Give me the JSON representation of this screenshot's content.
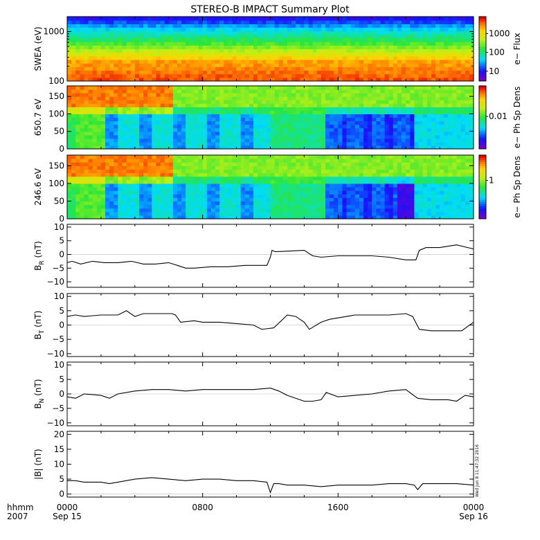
{
  "title": "STEREO-B IMPACT Summary Plot",
  "stamp": "Wed Jun  8 11:47:32 2016",
  "time_axis": {
    "corner_top": "hhmm",
    "corner_bottom": "2007",
    "ticks": [
      {
        "hour": 0,
        "label": "0000",
        "sub": "Sep 15"
      },
      {
        "hour": 8,
        "label": "0800",
        "sub": ""
      },
      {
        "hour": 16,
        "label": "1600",
        "sub": ""
      },
      {
        "hour": 24,
        "label": "0000",
        "sub": "Sep 16"
      }
    ],
    "range_hours": [
      0,
      24
    ]
  },
  "colors": {
    "line": "#000000",
    "axis": "#000000"
  },
  "chart_data": [
    {
      "type": "heatmap",
      "id": "swea",
      "ylabel": "SWEA (eV)",
      "yscale": "log",
      "ylim": [
        100,
        2000
      ],
      "yticks": [
        {
          "v": 100,
          "label": "100"
        },
        {
          "v": 1000,
          "label": "1000"
        }
      ],
      "colorbar": {
        "label": "e− Flux",
        "scale": "log",
        "range": [
          3,
          8000
        ],
        "ticks": [
          {
            "v": 10,
            "label": "10"
          },
          {
            "v": 100,
            "label": "100"
          },
          {
            "v": 1000,
            "label": "1000"
          }
        ]
      }
    },
    {
      "type": "heatmap",
      "id": "pad650",
      "ylabel": "650.7 eV",
      "ylim": [
        0,
        180
      ],
      "yticks": [
        {
          "v": 0,
          "label": "0"
        },
        {
          "v": 50,
          "label": "50"
        },
        {
          "v": 100,
          "label": "100"
        },
        {
          "v": 150,
          "label": "150"
        }
      ],
      "colorbar": {
        "label": "e− Ph Sp Dens",
        "scale": "log",
        "range": [
          0.0015,
          0.06
        ],
        "ticks": [
          {
            "v": 0.01,
            "label": "0.01"
          }
        ]
      }
    },
    {
      "type": "heatmap",
      "id": "pad246",
      "ylabel": "246.6 eV",
      "ylim": [
        0,
        180
      ],
      "yticks": [
        {
          "v": 0,
          "label": "0"
        },
        {
          "v": 50,
          "label": "50"
        },
        {
          "v": 100,
          "label": "100"
        },
        {
          "v": 150,
          "label": "150"
        }
      ],
      "colorbar": {
        "label": "e− Ph Sp Dens",
        "scale": "log",
        "range": [
          0.15,
          3.5
        ],
        "ticks": [
          {
            "v": 1,
            "label": "1"
          }
        ]
      }
    },
    {
      "type": "line",
      "id": "br",
      "ylabel": "B",
      "ylabel_sub": "R",
      "ylabel_unit": " (nT)",
      "ylim": [
        -12,
        11
      ],
      "yticks": [
        {
          "v": -10,
          "label": "−10"
        },
        {
          "v": -5,
          "label": "−5"
        },
        {
          "v": 0,
          "label": "0"
        },
        {
          "v": 5,
          "label": "5"
        },
        {
          "v": 10,
          "label": "10"
        }
      ],
      "x": [
        0,
        0.3,
        0.8,
        1.5,
        2.2,
        3.0,
        3.8,
        4.5,
        5.2,
        6.0,
        6.5,
        7.0,
        7.5,
        8.5,
        9.5,
        10.5,
        11.2,
        11.8,
        12.0,
        12.1,
        12.3,
        13.0,
        14.0,
        14.5,
        15.0,
        16.0,
        17.0,
        18.0,
        19.0,
        20.0,
        20.6,
        20.8,
        21.2,
        22.0,
        23.0,
        24.0
      ],
      "y": [
        -3,
        -2.5,
        -3.5,
        -2.5,
        -3,
        -3,
        -2.5,
        -3.5,
        -3.5,
        -3,
        -4,
        -5,
        -5,
        -4.5,
        -4.5,
        -4,
        -4,
        -4,
        -1,
        1.5,
        1,
        1.2,
        1.5,
        -0.5,
        -1,
        -0.5,
        -0.5,
        -0.5,
        -1,
        -2,
        -2,
        1.5,
        2.5,
        2.5,
        3.5,
        2
      ]
    },
    {
      "type": "line",
      "id": "bt",
      "ylabel": "B",
      "ylabel_sub": "T",
      "ylabel_unit": " (nT)",
      "ylim": [
        -11,
        11
      ],
      "yticks": [
        {
          "v": -10,
          "label": "−10"
        },
        {
          "v": -5,
          "label": "−5"
        },
        {
          "v": 0,
          "label": "0"
        },
        {
          "v": 5,
          "label": "5"
        },
        {
          "v": 10,
          "label": "10"
        }
      ],
      "x": [
        0,
        0.5,
        1.0,
        2.0,
        3.0,
        3.5,
        4.0,
        4.5,
        5.5,
        6.2,
        6.4,
        6.7,
        7.5,
        8.0,
        9.0,
        10.0,
        11.0,
        11.5,
        12.2,
        13.0,
        13.5,
        14.0,
        14.3,
        15.0,
        15.5,
        16.5,
        17.0,
        18.0,
        19.0,
        20.0,
        20.4,
        20.8,
        21.5,
        22.5,
        23.3,
        24.0
      ],
      "y": [
        3,
        3.5,
        3,
        3.5,
        3.5,
        5,
        3,
        4,
        4,
        4,
        3.5,
        1,
        1.5,
        1,
        1,
        0.5,
        0,
        -1.5,
        -1,
        3.5,
        3,
        1,
        -1.5,
        1,
        2,
        3,
        3.5,
        3.5,
        3.5,
        4,
        3,
        -1.5,
        -2,
        -2,
        -2,
        1
      ]
    },
    {
      "type": "line",
      "id": "bn",
      "ylabel": "B",
      "ylabel_sub": "N",
      "ylabel_unit": " (nT)",
      "ylim": [
        -11,
        11
      ],
      "yticks": [
        {
          "v": -10,
          "label": "−10"
        },
        {
          "v": -5,
          "label": "−5"
        },
        {
          "v": 0,
          "label": "0"
        },
        {
          "v": 5,
          "label": "5"
        },
        {
          "v": 10,
          "label": "10"
        }
      ],
      "x": [
        0,
        0.5,
        1.0,
        2.0,
        2.5,
        3.0,
        4.0,
        5.0,
        6.0,
        7.0,
        8.0,
        9.0,
        10.0,
        11.0,
        12.0,
        12.5,
        13.0,
        14.0,
        14.5,
        15.0,
        15.3,
        16.0,
        17.0,
        18.0,
        19.0,
        20.0,
        20.7,
        21.5,
        22.5,
        23.0,
        23.5,
        24.0
      ],
      "y": [
        -1,
        -1.5,
        0,
        -0.5,
        -1.5,
        0,
        1,
        1.5,
        1.5,
        1,
        1.5,
        1.5,
        1.5,
        1.5,
        2,
        1,
        -0.5,
        -2.5,
        -2.5,
        -2,
        0.5,
        -1,
        -0.5,
        0,
        1,
        1.5,
        -1.5,
        -2,
        -2,
        -2.5,
        -0.5,
        -1
      ]
    },
    {
      "type": "line",
      "id": "bmag",
      "ylabel": "|B| (nT)",
      "ylim": [
        -1,
        21
      ],
      "yticks": [
        {
          "v": 0,
          "label": "0"
        },
        {
          "v": 5,
          "label": "5"
        },
        {
          "v": 10,
          "label": "10"
        },
        {
          "v": 15,
          "label": "15"
        },
        {
          "v": 20,
          "label": "20"
        }
      ],
      "x": [
        0,
        0.5,
        1.0,
        2.0,
        2.5,
        3.0,
        4.0,
        5.0,
        6.0,
        7.0,
        8.0,
        9.0,
        10.0,
        11.0,
        11.8,
        12.0,
        12.2,
        12.5,
        13.0,
        14.0,
        15.0,
        16.0,
        17.0,
        18.0,
        19.0,
        20.0,
        20.5,
        20.7,
        21.0,
        22.0,
        23.0,
        24.0
      ],
      "y": [
        4.5,
        4.5,
        4,
        4,
        3.5,
        4,
        5,
        5.5,
        5,
        4.5,
        5,
        5,
        4.5,
        4.5,
        4,
        0.5,
        3.5,
        3.5,
        3,
        3,
        2.5,
        3,
        3,
        3,
        3.5,
        3.5,
        3,
        1.5,
        3.5,
        3.5,
        3.5,
        3
      ]
    }
  ]
}
